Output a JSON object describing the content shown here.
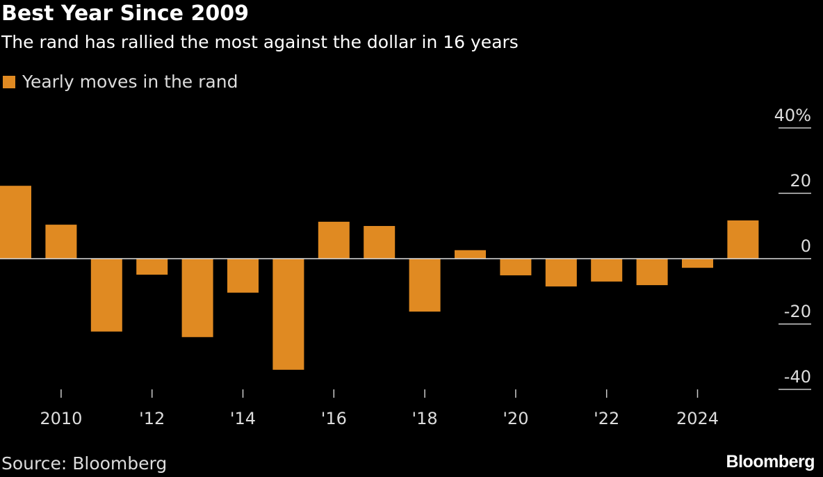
{
  "chart_data": {
    "type": "bar",
    "title": "Best Year Since 2009",
    "subtitle": "The rand has rallied the most against the dollar in 16 years",
    "legend": [
      {
        "name": "Yearly moves in the rand",
        "color": "#e08a22"
      }
    ],
    "legend_placement": "top-left",
    "categories": [
      2009,
      2010,
      2011,
      2012,
      2013,
      2014,
      2015,
      2016,
      2017,
      2018,
      2019,
      2020,
      2021,
      2022,
      2023,
      2024,
      2025
    ],
    "series": [
      {
        "name": "Yearly moves in the rand",
        "values": [
          22.3,
          10.4,
          -22.3,
          -4.9,
          -24.0,
          -10.4,
          -34.0,
          11.3,
          10.0,
          -16.2,
          2.6,
          -5.1,
          -8.5,
          -7.0,
          -8.1,
          -2.8,
          11.7
        ]
      }
    ],
    "x_ticks": [
      {
        "year": 2010,
        "label": "2010"
      },
      {
        "year": 2012,
        "label": "'12"
      },
      {
        "year": 2014,
        "label": "'14"
      },
      {
        "year": 2016,
        "label": "'16"
      },
      {
        "year": 2018,
        "label": "'18"
      },
      {
        "year": 2020,
        "label": "'20"
      },
      {
        "year": 2022,
        "label": "'22"
      },
      {
        "year": 2024,
        "label": "2024"
      }
    ],
    "y_ticks": [
      {
        "value": 40,
        "label": "40%"
      },
      {
        "value": 20,
        "label": "20"
      },
      {
        "value": 0,
        "label": "0"
      },
      {
        "value": -20,
        "label": "-20"
      },
      {
        "value": -40,
        "label": "-40"
      }
    ],
    "ylim": [
      -40,
      40
    ],
    "y_axis_side": "right",
    "grid": false,
    "source": "Source: Bloomberg",
    "logo": "Bloomberg"
  }
}
